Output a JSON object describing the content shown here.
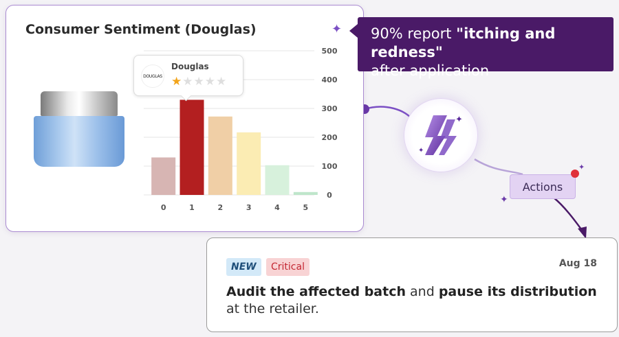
{
  "card": {
    "title": "Consumer Sentiment (Douglas)",
    "sparkle_icon": "sparkle-icon",
    "product_image": "cream-jar-image"
  },
  "tooltip": {
    "logo_text": "DOUGLAS",
    "retailer": "Douglas",
    "rating": 1,
    "rating_max": 5
  },
  "chart_data": {
    "type": "bar",
    "title": "",
    "xlabel": "",
    "ylabel": "",
    "categories": [
      "0",
      "1",
      "2",
      "3",
      "4",
      "5"
    ],
    "values": [
      130,
      330,
      272,
      217,
      103,
      10
    ],
    "ylim": [
      0,
      500
    ],
    "yticks": [
      0,
      100,
      200,
      300,
      400,
      500
    ],
    "y_axis_position": "right",
    "grid": true,
    "highlight_index": 1,
    "colors": [
      "#d7b5b3",
      "#b31f20",
      "#f0cfa6",
      "#fbecb3",
      "#d7f1dc",
      "#bfe6cb"
    ]
  },
  "callout": {
    "prefix": "90% report ",
    "highlight": "\"itching and redness\"",
    "suffix": " after application"
  },
  "ai_icon": "copilot-icon",
  "actions": {
    "label": "Actions"
  },
  "task": {
    "tag_new": "NEW",
    "tag_critical": "Critical",
    "date": "Aug 18",
    "text_bold_1": "Audit the affected batch",
    "text_1": " and ",
    "text_bold_2": "pause its distribution",
    "text_2": " at the retailer."
  },
  "colors": {
    "accent_purple": "#4a1a67",
    "card_border": "#a98ad1",
    "critical_red": "#c42632"
  }
}
